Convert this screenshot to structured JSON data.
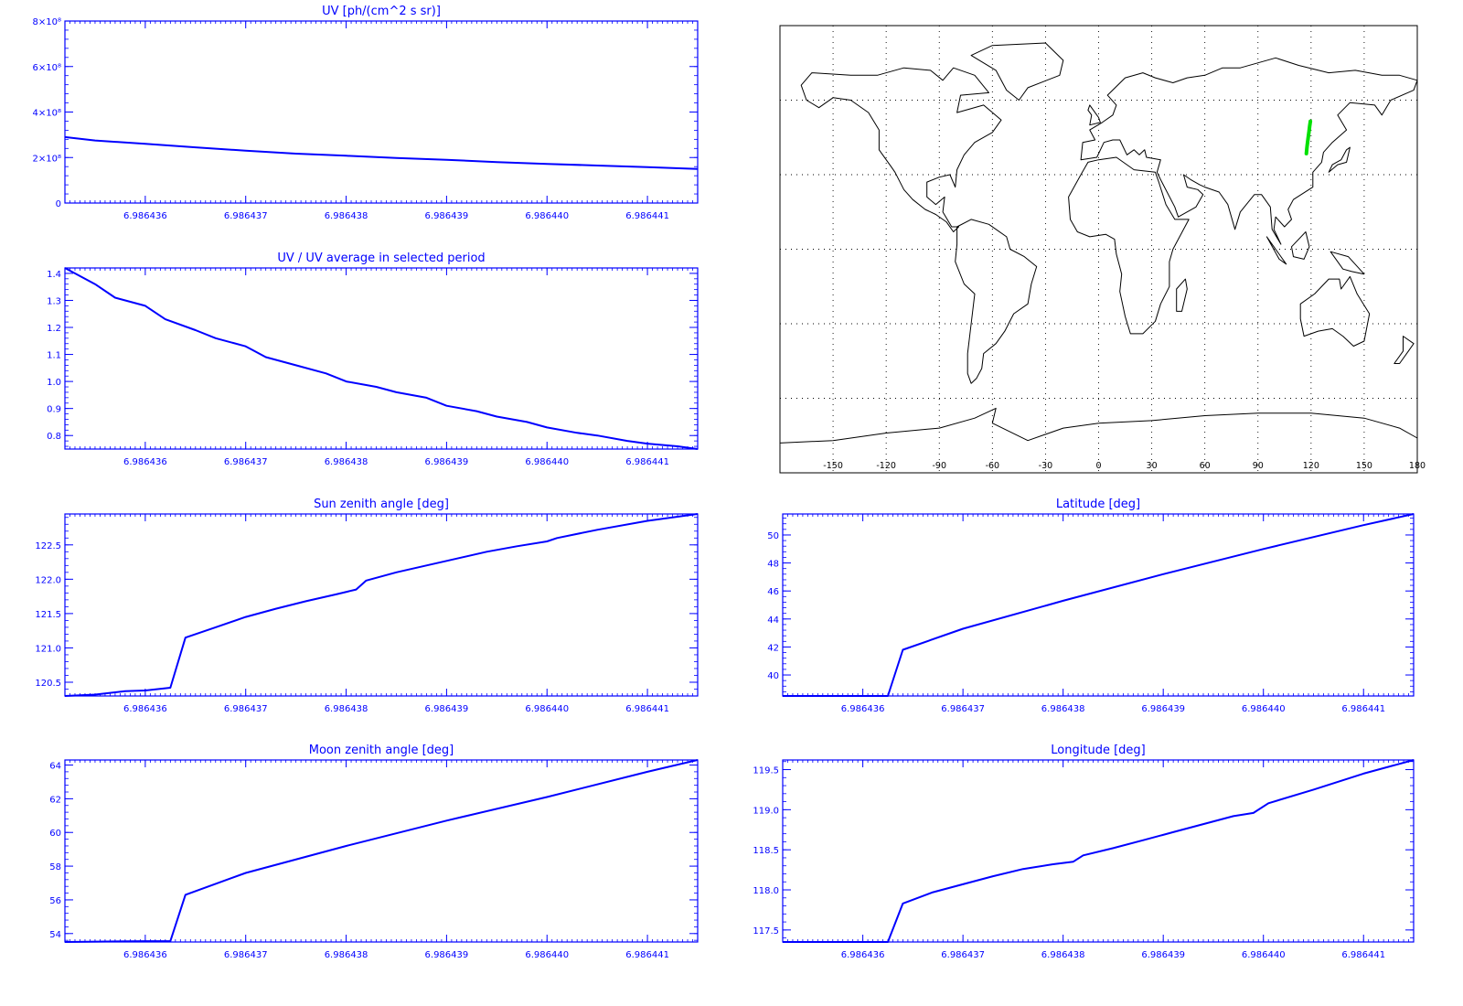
{
  "chart_data": [
    {
      "id": "uv",
      "type": "line",
      "title": "UV [ph/(cm^2 s sr)]",
      "xlabel": "",
      "ylabel": "",
      "xlim": [
        6.9864352,
        6.9864415
      ],
      "ylim": [
        0,
        800000000.0
      ],
      "x_ticks": [
        6.986436,
        6.986437,
        6.986438,
        6.986439,
        6.98644,
        6.986441
      ],
      "x_tick_labels": [
        "6.986436",
        "6.986437",
        "6.986438",
        "6.986439",
        "6.986440",
        "6.986441"
      ],
      "y_ticks": [
        0,
        200000000.0,
        400000000.0,
        600000000.0,
        800000000.0
      ],
      "y_tick_labels": [
        "0",
        "2×10⁸",
        "4×10⁸",
        "6×10⁸",
        "8×10⁸"
      ],
      "color": "#0000ff",
      "series": [
        {
          "x": [
            6.9864352,
            6.9864355,
            6.986436,
            6.9864365,
            6.986437,
            6.9864375,
            6.986438,
            6.9864385,
            6.986439,
            6.9864395,
            6.98644,
            6.9864405,
            6.986441,
            6.9864415
          ],
          "y": [
            290000000.0,
            275000000.0,
            260000000.0,
            245000000.0,
            230000000.0,
            217000000.0,
            208000000.0,
            198000000.0,
            190000000.0,
            180000000.0,
            172000000.0,
            165000000.0,
            158000000.0,
            150000000.0
          ]
        }
      ]
    },
    {
      "id": "uvratio",
      "type": "line",
      "title": "UV / UV average in selected period",
      "xlabel": "",
      "ylabel": "",
      "xlim": [
        6.9864352,
        6.9864415
      ],
      "ylim": [
        0.75,
        1.42
      ],
      "x_ticks": [
        6.986436,
        6.986437,
        6.986438,
        6.986439,
        6.98644,
        6.986441
      ],
      "x_tick_labels": [
        "6.986436",
        "6.986437",
        "6.986438",
        "6.986439",
        "6.986440",
        "6.986441"
      ],
      "y_ticks": [
        0.8,
        0.9,
        1.0,
        1.1,
        1.2,
        1.3,
        1.4
      ],
      "y_tick_labels": [
        "0.8",
        "0.9",
        "1.0",
        "1.1",
        "1.2",
        "1.3",
        "1.4"
      ],
      "color": "#0000ff",
      "series": [
        {
          "x": [
            6.9864352,
            6.9864355,
            6.9864357,
            6.986436,
            6.9864362,
            6.9864365,
            6.9864367,
            6.986437,
            6.9864372,
            6.9864375,
            6.9864378,
            6.986438,
            6.9864383,
            6.9864385,
            6.9864388,
            6.986439,
            6.9864393,
            6.9864395,
            6.9864398,
            6.98644,
            6.9864403,
            6.9864405,
            6.9864408,
            6.986441,
            6.9864413,
            6.9864415
          ],
          "y": [
            1.42,
            1.36,
            1.31,
            1.28,
            1.23,
            1.19,
            1.16,
            1.13,
            1.09,
            1.06,
            1.03,
            1.0,
            0.98,
            0.96,
            0.94,
            0.91,
            0.89,
            0.87,
            0.85,
            0.83,
            0.81,
            0.8,
            0.78,
            0.77,
            0.76,
            0.75
          ]
        }
      ]
    },
    {
      "id": "sza",
      "type": "line",
      "title": "Sun zenith angle [deg]",
      "xlabel": "",
      "ylabel": "",
      "xlim": [
        6.9864352,
        6.9864415
      ],
      "ylim": [
        120.3,
        122.95
      ],
      "x_ticks": [
        6.986436,
        6.986437,
        6.986438,
        6.986439,
        6.98644,
        6.986441
      ],
      "x_tick_labels": [
        "6.986436",
        "6.986437",
        "6.986438",
        "6.986439",
        "6.986440",
        "6.986441"
      ],
      "y_ticks": [
        120.5,
        121.0,
        121.5,
        122.0,
        122.5
      ],
      "y_tick_labels": [
        "120.5",
        "121.0",
        "121.5",
        "122.0",
        "122.5"
      ],
      "color": "#0000ff",
      "series": [
        {
          "x": [
            6.9864352,
            6.9864355,
            6.9864358,
            6.986436,
            6.98643625,
            6.9864364,
            6.9864367,
            6.986437,
            6.9864373,
            6.9864376,
            6.9864379,
            6.9864381,
            6.9864382,
            6.9864385,
            6.9864388,
            6.9864391,
            6.9864394,
            6.9864397,
            6.98644,
            6.9864401,
            6.9864405,
            6.986441,
            6.9864415
          ],
          "y": [
            120.3,
            120.32,
            120.37,
            120.38,
            120.42,
            121.15,
            121.3,
            121.45,
            121.57,
            121.68,
            121.78,
            121.85,
            121.98,
            122.1,
            122.2,
            122.3,
            122.4,
            122.48,
            122.55,
            122.6,
            122.72,
            122.85,
            122.95
          ]
        }
      ]
    },
    {
      "id": "lat",
      "type": "line",
      "title": "Latitude [deg]",
      "xlabel": "",
      "ylabel": "",
      "xlim": [
        6.9864352,
        6.9864415
      ],
      "ylim": [
        38.5,
        51.5
      ],
      "x_ticks": [
        6.986436,
        6.986437,
        6.986438,
        6.986439,
        6.98644,
        6.986441
      ],
      "x_tick_labels": [
        "6.986436",
        "6.986437",
        "6.986438",
        "6.986439",
        "6.986440",
        "6.986441"
      ],
      "y_ticks": [
        40,
        42,
        44,
        46,
        48,
        50
      ],
      "y_tick_labels": [
        "40",
        "42",
        "44",
        "46",
        "48",
        "50"
      ],
      "color": "#0000ff",
      "series": [
        {
          "x": [
            6.9864352,
            6.986436,
            6.98643625,
            6.9864364,
            6.986437,
            6.986438,
            6.986439,
            6.98644,
            6.986441,
            6.9864415
          ],
          "y": [
            38.5,
            38.5,
            38.5,
            41.8,
            43.3,
            45.3,
            47.2,
            49.0,
            50.7,
            51.5
          ]
        }
      ]
    },
    {
      "id": "mza",
      "type": "line",
      "title": "Moon zenith angle [deg]",
      "xlabel": "",
      "ylabel": "",
      "xlim": [
        6.9864352,
        6.9864415
      ],
      "ylim": [
        53.5,
        64.3
      ],
      "x_ticks": [
        6.986436,
        6.986437,
        6.986438,
        6.986439,
        6.98644,
        6.986441
      ],
      "x_tick_labels": [
        "6.986436",
        "6.986437",
        "6.986438",
        "6.986439",
        "6.986440",
        "6.986441"
      ],
      "y_ticks": [
        54,
        56,
        58,
        60,
        62,
        64
      ],
      "y_tick_labels": [
        "54",
        "56",
        "58",
        "60",
        "62",
        "64"
      ],
      "color": "#0000ff",
      "series": [
        {
          "x": [
            6.9864352,
            6.986436,
            6.98643625,
            6.9864364,
            6.986437,
            6.986438,
            6.986439,
            6.98644,
            6.986441,
            6.9864415
          ],
          "y": [
            53.5,
            53.55,
            53.55,
            56.3,
            57.6,
            59.2,
            60.7,
            62.1,
            63.6,
            64.3
          ]
        }
      ]
    },
    {
      "id": "lon",
      "type": "line",
      "title": "Longitude [deg]",
      "xlabel": "",
      "ylabel": "",
      "xlim": [
        6.9864352,
        6.9864415
      ],
      "ylim": [
        117.35,
        119.62
      ],
      "x_ticks": [
        6.986436,
        6.986437,
        6.986438,
        6.986439,
        6.98644,
        6.986441
      ],
      "x_tick_labels": [
        "6.986436",
        "6.986437",
        "6.986438",
        "6.986439",
        "6.986440",
        "6.986441"
      ],
      "y_ticks": [
        117.5,
        118.0,
        118.5,
        119.0,
        119.5
      ],
      "y_tick_labels": [
        "117.5",
        "118.0",
        "118.5",
        "119.0",
        "119.5"
      ],
      "color": "#0000ff",
      "series": [
        {
          "x": [
            6.9864352,
            6.986436,
            6.98643625,
            6.9864364,
            6.9864367,
            6.986437,
            6.9864373,
            6.9864376,
            6.9864379,
            6.9864381,
            6.9864382,
            6.9864385,
            6.9864388,
            6.9864391,
            6.9864394,
            6.9864397,
            6.9864399,
            6.98644005,
            6.9864405,
            6.986441,
            6.9864415
          ],
          "y": [
            117.35,
            117.35,
            117.35,
            117.83,
            117.97,
            118.07,
            118.17,
            118.26,
            118.32,
            118.35,
            118.43,
            118.52,
            118.62,
            118.72,
            118.82,
            118.92,
            118.96,
            119.08,
            119.25,
            119.45,
            119.62
          ]
        }
      ]
    },
    {
      "id": "map",
      "type": "scatter",
      "title": "",
      "xlim": [
        -180,
        180
      ],
      "ylim": [
        -90,
        90
      ],
      "x_tick_labels": [
        "-150",
        "-120",
        "-90",
        "-60",
        "-30",
        "0",
        "30",
        "60",
        "90",
        "120",
        "150",
        "180"
      ],
      "x_ticks": [
        -150,
        -120,
        -90,
        -60,
        -30,
        0,
        30,
        60,
        90,
        120,
        150,
        180
      ],
      "grid": true,
      "track_color": "#00e000",
      "track": {
        "lon": [
          117.35,
          117.6,
          117.83,
          118.1,
          118.5,
          118.9,
          119.2,
          119.62
        ],
        "lat": [
          38.5,
          40.5,
          41.8,
          43.5,
          45.5,
          47.6,
          49.5,
          51.5
        ]
      }
    }
  ]
}
